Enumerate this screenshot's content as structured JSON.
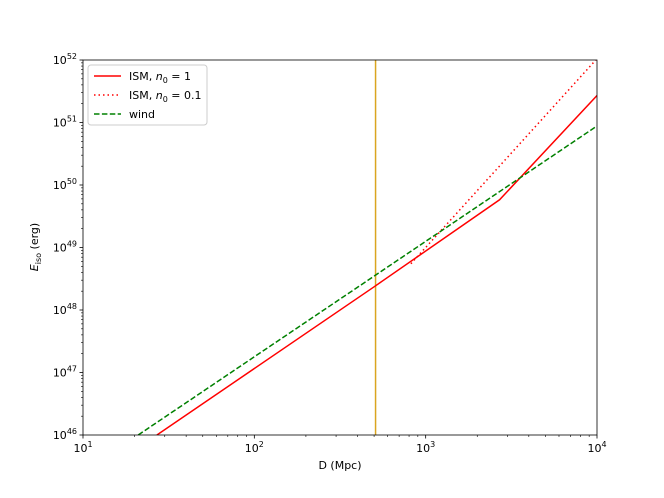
{
  "chart_data": {
    "type": "line",
    "xscale": "log",
    "yscale": "log",
    "xlim": [
      10,
      10000
    ],
    "ylim": [
      1e+46,
      1e+52
    ],
    "xlabel": "D (Mpc)",
    "ylabel": {
      "main": "E",
      "sub": "iso",
      "unit": " (erg)"
    },
    "x_ticks": [
      {
        "value": 10,
        "base": "10",
        "exp": "1"
      },
      {
        "value": 100,
        "base": "10",
        "exp": "2"
      },
      {
        "value": 1000,
        "base": "10",
        "exp": "3"
      },
      {
        "value": 10000,
        "base": "10",
        "exp": "4"
      }
    ],
    "y_ticks": [
      {
        "value": 1e+46,
        "base": "10",
        "exp": "46"
      },
      {
        "value": 1e+47,
        "base": "10",
        "exp": "47"
      },
      {
        "value": 1e+48,
        "base": "10",
        "exp": "48"
      },
      {
        "value": 1e+49,
        "base": "10",
        "exp": "49"
      },
      {
        "value": 1e+50,
        "base": "10",
        "exp": "50"
      },
      {
        "value": 1e+51,
        "base": "10",
        "exp": "51"
      },
      {
        "value": 1e+52,
        "base": "10",
        "exp": "52"
      }
    ],
    "grid": false,
    "legend_position": "top-left",
    "series": [
      {
        "name": {
          "pre": "ISM, ",
          "var": "n",
          "sub": "0",
          "post": " = 1"
        },
        "color": "#ff0000",
        "style": "solid",
        "x": [
          27,
          500,
          2700,
          10000
        ],
        "y": [
          1e+46,
          2.35e+48,
          5.8e+49,
          2.7e+51
        ]
      },
      {
        "name": {
          "pre": "ISM, ",
          "var": "n",
          "sub": "0",
          "post": " = 0.1"
        },
        "color": "#ff0000",
        "style": "dotted",
        "x": [
          820,
          10000
        ],
        "y": [
          5.5e+48,
          1.05e+52
        ]
      },
      {
        "name": {
          "pre": "wind",
          "var": "",
          "sub": "",
          "post": ""
        },
        "color": "#008000",
        "style": "dashed",
        "x": [
          21,
          10000
        ],
        "y": [
          1e+46,
          8.8e+50
        ]
      }
    ],
    "vlines": [
      {
        "x": 510,
        "color": "#daa520"
      }
    ]
  }
}
